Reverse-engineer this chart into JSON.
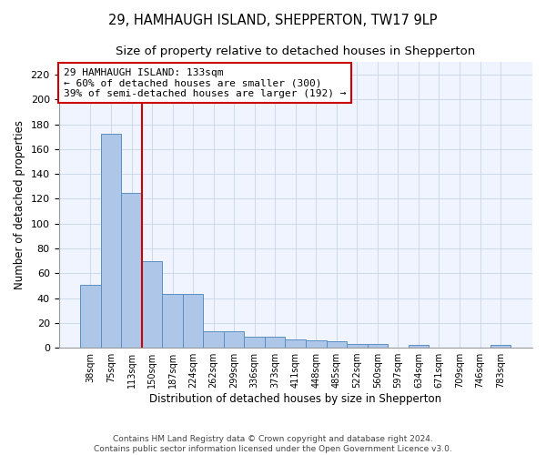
{
  "title": "29, HAMHAUGH ISLAND, SHEPPERTON, TW17 9LP",
  "subtitle": "Size of property relative to detached houses in Shepperton",
  "xlabel": "Distribution of detached houses by size in Shepperton",
  "ylabel": "Number of detached properties",
  "footer_line1": "Contains HM Land Registry data © Crown copyright and database right 2024.",
  "footer_line2": "Contains public sector information licensed under the Open Government Licence v3.0.",
  "bar_labels": [
    "38sqm",
    "75sqm",
    "113sqm",
    "150sqm",
    "187sqm",
    "224sqm",
    "262sqm",
    "299sqm",
    "336sqm",
    "373sqm",
    "411sqm",
    "448sqm",
    "485sqm",
    "522sqm",
    "560sqm",
    "597sqm",
    "634sqm",
    "671sqm",
    "709sqm",
    "746sqm",
    "783sqm"
  ],
  "bar_values": [
    51,
    172,
    125,
    70,
    43,
    43,
    13,
    13,
    9,
    9,
    7,
    6,
    5,
    3,
    3,
    0,
    2,
    0,
    0,
    0,
    2
  ],
  "bar_color": "#aec6e8",
  "bar_edge_color": "#5a8fc2",
  "vline_x": 2.5,
  "vline_color": "#cc0000",
  "annotation_text": "29 HAMHAUGH ISLAND: 133sqm\n← 60% of detached houses are smaller (300)\n39% of semi-detached houses are larger (192) →",
  "annotation_box_color": "#cc0000",
  "ylim": [
    0,
    230
  ],
  "yticks": [
    0,
    20,
    40,
    60,
    80,
    100,
    120,
    140,
    160,
    180,
    200,
    220
  ],
  "bg_color": "#ffffff",
  "grid_color": "#cccccc",
  "title_fontsize": 10.5,
  "subtitle_fontsize": 9.5,
  "label_fontsize": 8.5
}
